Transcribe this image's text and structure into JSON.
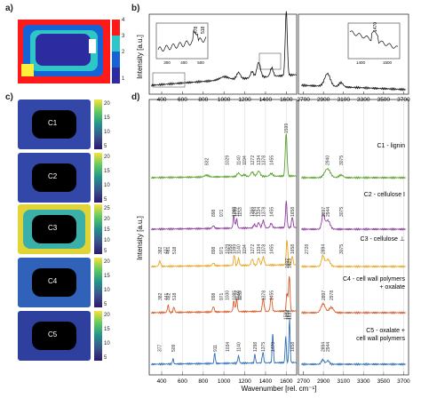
{
  "panels": {
    "a": "a)",
    "b": "b)",
    "c": "c)",
    "d": "d)"
  },
  "panel_a": {
    "colorbar_ticks": [
      "4",
      "3",
      "2",
      "1"
    ]
  },
  "panel_c": {
    "maps": [
      {
        "label": "C1",
        "ticks": [
          "20",
          "15",
          "10",
          "5"
        ]
      },
      {
        "label": "C2",
        "ticks": [
          "20",
          "15",
          "10",
          "5"
        ]
      },
      {
        "label": "C3",
        "ticks": [
          "25",
          "20",
          "15",
          "10",
          "5"
        ]
      },
      {
        "label": "C4",
        "ticks": [
          "20",
          "15",
          "10",
          "5"
        ]
      },
      {
        "label": "C5",
        "ticks": [
          "20",
          "15",
          "10",
          "5"
        ]
      }
    ]
  },
  "panel_b": {
    "ylabel": "Intensity [a.u.]",
    "xticks_left": [
      "400",
      "600",
      "800",
      "1000",
      "1200",
      "1400",
      "1600"
    ],
    "xticks_right": [
      "2700",
      "2900",
      "3100",
      "3300",
      "3500",
      "3700"
    ],
    "inset1_ticks": [
      "300",
      "400",
      "500"
    ],
    "inset1_peaks": [
      "478",
      "518"
    ],
    "inset2_ticks": [
      "1400",
      "1500"
    ],
    "inset2_peak": "1470"
  },
  "panel_d": {
    "ylabel": "Intensity [a.u.]",
    "xlabel": "Wavenumber [rel. cm⁻¹]",
    "xticks_left": [
      "400",
      "600",
      "800",
      "1000",
      "1200",
      "1400",
      "1600"
    ],
    "xticks_right": [
      "2700",
      "2900",
      "3100",
      "3300",
      "3500",
      "3700"
    ],
    "spectra": [
      {
        "label": "C1 - lignin",
        "color": "#5aa02c"
      },
      {
        "label": "C2 - cellulose I",
        "color": "#8e3e9e"
      },
      {
        "label": "C3 - cellulose ⊥",
        "color": "#e8a623"
      },
      {
        "label": "C4 - cell wall polymers",
        "label2": "+ oxalate",
        "color": "#d85c2a"
      },
      {
        "label": "C5 - oxalate +",
        "label2": "cell wall polymers",
        "color": "#2f6fb6"
      }
    ],
    "peaks": {
      "c1": [
        "1599",
        "1140",
        "1334",
        "1455",
        "1194",
        "1272",
        "1378",
        "1029",
        "832",
        "2940",
        "3075"
      ],
      "c2": [
        "1098",
        "1122",
        "1153",
        "1378",
        "1334",
        "1294",
        "1455",
        "1095",
        "1266",
        "1658",
        "898",
        "971",
        "2897",
        "2944",
        "3075"
      ],
      "c3": [
        "1099",
        "1140",
        "1272",
        "1334",
        "1455",
        "1194",
        "1058",
        "1378",
        "1658",
        "898",
        "971",
        "1029",
        "382",
        "437",
        "461",
        "518",
        "2728",
        "2894",
        "3075"
      ],
      "c4": [
        "1455",
        "1378",
        "1122",
        "1153",
        "1140",
        "1095",
        "1030",
        "898",
        "971",
        "462",
        "518",
        "441",
        "382",
        "1629",
        "1607",
        "2897",
        "2978"
      ],
      "c5": [
        "1631",
        "1595",
        "1616",
        "1470",
        "1375",
        "1298",
        "1140",
        "1034",
        "911",
        "509",
        "377",
        "1658",
        "2894",
        "2944"
      ]
    }
  }
}
